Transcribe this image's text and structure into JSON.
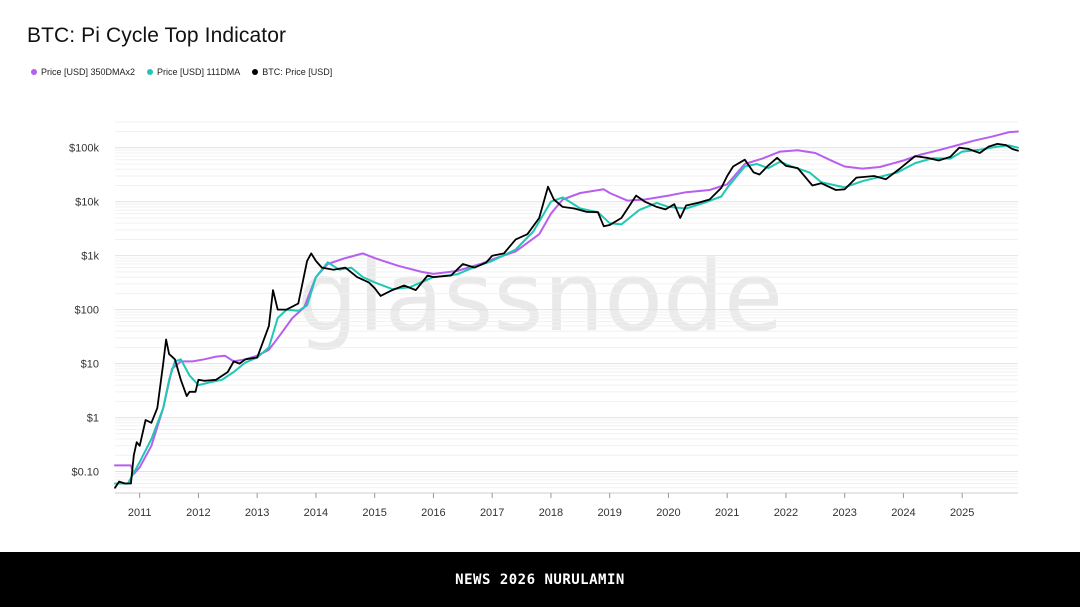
{
  "title": "BTC: Pi Cycle Top Indicator",
  "colors": {
    "ma350x2": "#b65ff0",
    "ma111": "#1fc8b4",
    "price": "#000000"
  },
  "watermark": "glassnode",
  "footer": {
    "text": "NEWS 2026 NURULAMIN"
  },
  "chart_data": {
    "type": "line",
    "title": "BTC: Pi Cycle Top Indicator",
    "y_scale": "log",
    "ylim": [
      0.04,
      300000
    ],
    "xlim": [
      2010.58,
      2025.95
    ],
    "y_ticks": [
      {
        "value": 0.1,
        "label": "$0.10"
      },
      {
        "value": 1,
        "label": "$1"
      },
      {
        "value": 10,
        "label": "$10"
      },
      {
        "value": 100,
        "label": "$100"
      },
      {
        "value": 1000,
        "label": "$1k"
      },
      {
        "value": 10000,
        "label": "$10k"
      },
      {
        "value": 100000,
        "label": "$100k"
      }
    ],
    "x_ticks": [
      {
        "value": 2011,
        "label": "2011"
      },
      {
        "value": 2012,
        "label": "2012"
      },
      {
        "value": 2013,
        "label": "2013"
      },
      {
        "value": 2014,
        "label": "2014"
      },
      {
        "value": 2015,
        "label": "2015"
      },
      {
        "value": 2016,
        "label": "2016"
      },
      {
        "value": 2017,
        "label": "2017"
      },
      {
        "value": 2018,
        "label": "2018"
      },
      {
        "value": 2019,
        "label": "2019"
      },
      {
        "value": 2020,
        "label": "2020"
      },
      {
        "value": 2021,
        "label": "2021"
      },
      {
        "value": 2022,
        "label": "2022"
      },
      {
        "value": 2023,
        "label": "2023"
      },
      {
        "value": 2024,
        "label": "2024"
      },
      {
        "value": 2025,
        "label": "2025"
      }
    ],
    "grid": true,
    "legend_position": "top-left",
    "series": [
      {
        "name": "Price [USD] 350DMAx2",
        "color": "#b65ff0",
        "points": [
          [
            2010.58,
            0.13
          ],
          [
            2010.85,
            0.13
          ],
          [
            2010.9,
            0.09
          ],
          [
            2011.0,
            0.12
          ],
          [
            2011.2,
            0.3
          ],
          [
            2011.4,
            1.5
          ],
          [
            2011.55,
            8
          ],
          [
            2011.7,
            11
          ],
          [
            2011.9,
            11
          ],
          [
            2012.1,
            12
          ],
          [
            2012.3,
            13.5
          ],
          [
            2012.45,
            14
          ],
          [
            2012.6,
            11
          ],
          [
            2012.8,
            12
          ],
          [
            2013.0,
            14
          ],
          [
            2013.2,
            18
          ],
          [
            2013.4,
            35
          ],
          [
            2013.6,
            70
          ],
          [
            2013.8,
            110
          ],
          [
            2014.0,
            400
          ],
          [
            2014.2,
            700
          ],
          [
            2014.5,
            900
          ],
          [
            2014.8,
            1100
          ],
          [
            2015.0,
            900
          ],
          [
            2015.4,
            650
          ],
          [
            2015.8,
            500
          ],
          [
            2016.0,
            460
          ],
          [
            2016.4,
            520
          ],
          [
            2016.8,
            700
          ],
          [
            2017.0,
            850
          ],
          [
            2017.4,
            1200
          ],
          [
            2017.8,
            2500
          ],
          [
            2018.0,
            6000
          ],
          [
            2018.2,
            11000
          ],
          [
            2018.5,
            14500
          ],
          [
            2018.9,
            17000
          ],
          [
            2019.0,
            14500
          ],
          [
            2019.3,
            10500
          ],
          [
            2019.6,
            11000
          ],
          [
            2020.0,
            13000
          ],
          [
            2020.3,
            15000
          ],
          [
            2020.7,
            16500
          ],
          [
            2021.0,
            21000
          ],
          [
            2021.3,
            50000
          ],
          [
            2021.6,
            63000
          ],
          [
            2021.9,
            85000
          ],
          [
            2022.2,
            90000
          ],
          [
            2022.5,
            80000
          ],
          [
            2022.8,
            56000
          ],
          [
            2023.0,
            45000
          ],
          [
            2023.3,
            41000
          ],
          [
            2023.6,
            44000
          ],
          [
            2024.0,
            58000
          ],
          [
            2024.3,
            75000
          ],
          [
            2024.6,
            90000
          ],
          [
            2024.9,
            110000
          ],
          [
            2025.2,
            135000
          ],
          [
            2025.5,
            160000
          ],
          [
            2025.8,
            195000
          ],
          [
            2025.95,
            200000
          ]
        ]
      },
      {
        "name": "Price [USD] 111DMA",
        "color": "#1fc8b4",
        "points": [
          [
            2010.58,
            0.06
          ],
          [
            2010.8,
            0.06
          ],
          [
            2011.0,
            0.15
          ],
          [
            2011.2,
            0.4
          ],
          [
            2011.4,
            1.5
          ],
          [
            2011.5,
            5
          ],
          [
            2011.6,
            11
          ],
          [
            2011.7,
            12
          ],
          [
            2011.85,
            6
          ],
          [
            2012.0,
            4
          ],
          [
            2012.2,
            4.5
          ],
          [
            2012.4,
            5
          ],
          [
            2012.6,
            7
          ],
          [
            2012.8,
            10.5
          ],
          [
            2013.0,
            13
          ],
          [
            2013.2,
            20
          ],
          [
            2013.35,
            70
          ],
          [
            2013.5,
            100
          ],
          [
            2013.7,
            95
          ],
          [
            2013.85,
            120
          ],
          [
            2014.0,
            400
          ],
          [
            2014.2,
            750
          ],
          [
            2014.4,
            550
          ],
          [
            2014.6,
            600
          ],
          [
            2014.8,
            400
          ],
          [
            2015.0,
            320
          ],
          [
            2015.3,
            240
          ],
          [
            2015.6,
            260
          ],
          [
            2016.0,
            400
          ],
          [
            2016.4,
            450
          ],
          [
            2016.7,
            620
          ],
          [
            2017.0,
            800
          ],
          [
            2017.4,
            1300
          ],
          [
            2017.7,
            2800
          ],
          [
            2018.0,
            10000
          ],
          [
            2018.2,
            12000
          ],
          [
            2018.5,
            7500
          ],
          [
            2018.8,
            6400
          ],
          [
            2019.0,
            4000
          ],
          [
            2019.2,
            3800
          ],
          [
            2019.5,
            7000
          ],
          [
            2019.8,
            9500
          ],
          [
            2020.0,
            8000
          ],
          [
            2020.3,
            7500
          ],
          [
            2020.6,
            9500
          ],
          [
            2020.9,
            12500
          ],
          [
            2021.0,
            18000
          ],
          [
            2021.3,
            45000
          ],
          [
            2021.5,
            50000
          ],
          [
            2021.7,
            42000
          ],
          [
            2021.9,
            55000
          ],
          [
            2022.1,
            45000
          ],
          [
            2022.4,
            35000
          ],
          [
            2022.6,
            23000
          ],
          [
            2022.9,
            19500
          ],
          [
            2023.0,
            18500
          ],
          [
            2023.3,
            24000
          ],
          [
            2023.6,
            29000
          ],
          [
            2023.9,
            35000
          ],
          [
            2024.2,
            52000
          ],
          [
            2024.5,
            64000
          ],
          [
            2024.8,
            63000
          ],
          [
            2025.0,
            85000
          ],
          [
            2025.3,
            92000
          ],
          [
            2025.6,
            105000
          ],
          [
            2025.8,
            110000
          ],
          [
            2025.95,
            100000
          ]
        ]
      },
      {
        "name": "BTC: Price [USD]",
        "color": "#000000",
        "points": [
          [
            2010.58,
            0.05
          ],
          [
            2010.65,
            0.065
          ],
          [
            2010.75,
            0.06
          ],
          [
            2010.85,
            0.06
          ],
          [
            2010.9,
            0.2
          ],
          [
            2010.95,
            0.35
          ],
          [
            2011.0,
            0.3
          ],
          [
            2011.1,
            0.9
          ],
          [
            2011.2,
            0.8
          ],
          [
            2011.3,
            1.5
          ],
          [
            2011.4,
            10
          ],
          [
            2011.45,
            28
          ],
          [
            2011.5,
            15
          ],
          [
            2011.6,
            12
          ],
          [
            2011.7,
            5
          ],
          [
            2011.8,
            2.5
          ],
          [
            2011.85,
            3
          ],
          [
            2011.95,
            3
          ],
          [
            2012.0,
            5
          ],
          [
            2012.1,
            4.8
          ],
          [
            2012.3,
            5
          ],
          [
            2012.5,
            7
          ],
          [
            2012.6,
            11
          ],
          [
            2012.7,
            10
          ],
          [
            2012.8,
            12
          ],
          [
            2013.0,
            13
          ],
          [
            2013.2,
            50
          ],
          [
            2013.27,
            230
          ],
          [
            2013.35,
            100
          ],
          [
            2013.5,
            100
          ],
          [
            2013.7,
            130
          ],
          [
            2013.85,
            800
          ],
          [
            2013.92,
            1100
          ],
          [
            2014.0,
            800
          ],
          [
            2014.1,
            600
          ],
          [
            2014.3,
            550
          ],
          [
            2014.5,
            600
          ],
          [
            2014.7,
            400
          ],
          [
            2014.9,
            320
          ],
          [
            2015.0,
            250
          ],
          [
            2015.1,
            180
          ],
          [
            2015.3,
            230
          ],
          [
            2015.5,
            280
          ],
          [
            2015.7,
            230
          ],
          [
            2015.9,
            430
          ],
          [
            2016.0,
            400
          ],
          [
            2016.3,
            430
          ],
          [
            2016.5,
            700
          ],
          [
            2016.7,
            600
          ],
          [
            2016.9,
            750
          ],
          [
            2017.0,
            1000
          ],
          [
            2017.2,
            1100
          ],
          [
            2017.4,
            2000
          ],
          [
            2017.6,
            2500
          ],
          [
            2017.8,
            5000
          ],
          [
            2017.95,
            19000
          ],
          [
            2018.05,
            11000
          ],
          [
            2018.2,
            8000
          ],
          [
            2018.4,
            7500
          ],
          [
            2018.6,
            6500
          ],
          [
            2018.8,
            6400
          ],
          [
            2018.9,
            3500
          ],
          [
            2019.0,
            3700
          ],
          [
            2019.2,
            5000
          ],
          [
            2019.45,
            13000
          ],
          [
            2019.6,
            10000
          ],
          [
            2019.8,
            8000
          ],
          [
            2019.95,
            7200
          ],
          [
            2020.1,
            9000
          ],
          [
            2020.2,
            5000
          ],
          [
            2020.3,
            8500
          ],
          [
            2020.5,
            9500
          ],
          [
            2020.7,
            11000
          ],
          [
            2020.9,
            18000
          ],
          [
            2021.0,
            30000
          ],
          [
            2021.1,
            45000
          ],
          [
            2021.3,
            60000
          ],
          [
            2021.45,
            35000
          ],
          [
            2021.55,
            32000
          ],
          [
            2021.7,
            47000
          ],
          [
            2021.85,
            65000
          ],
          [
            2022.0,
            46000
          ],
          [
            2022.2,
            42000
          ],
          [
            2022.45,
            20000
          ],
          [
            2022.6,
            22000
          ],
          [
            2022.85,
            16500
          ],
          [
            2023.0,
            17000
          ],
          [
            2023.2,
            28000
          ],
          [
            2023.5,
            30000
          ],
          [
            2023.7,
            26000
          ],
          [
            2023.95,
            42000
          ],
          [
            2024.2,
            70000
          ],
          [
            2024.4,
            65000
          ],
          [
            2024.6,
            58000
          ],
          [
            2024.8,
            68000
          ],
          [
            2024.95,
            100000
          ],
          [
            2025.1,
            95000
          ],
          [
            2025.3,
            80000
          ],
          [
            2025.45,
            105000
          ],
          [
            2025.6,
            118000
          ],
          [
            2025.75,
            112000
          ],
          [
            2025.85,
            95000
          ],
          [
            2025.95,
            88000
          ]
        ]
      }
    ]
  }
}
